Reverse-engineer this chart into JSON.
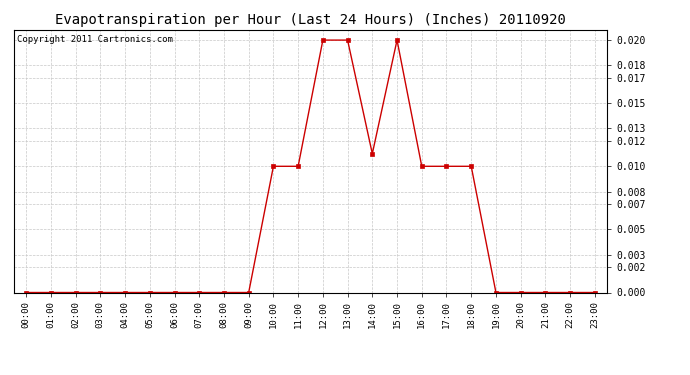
{
  "title": "Evapotranspiration per Hour (Last 24 Hours) (Inches) 20110920",
  "copyright": "Copyright 2011 Cartronics.com",
  "hours": [
    "00:00",
    "01:00",
    "02:00",
    "03:00",
    "04:00",
    "05:00",
    "06:00",
    "07:00",
    "08:00",
    "09:00",
    "10:00",
    "11:00",
    "12:00",
    "13:00",
    "14:00",
    "15:00",
    "16:00",
    "17:00",
    "18:00",
    "19:00",
    "20:00",
    "21:00",
    "22:00",
    "23:00"
  ],
  "values": [
    0.0,
    0.0,
    0.0,
    0.0,
    0.0,
    0.0,
    0.0,
    0.0,
    0.0,
    0.0,
    0.01,
    0.01,
    0.02,
    0.02,
    0.011,
    0.02,
    0.01,
    0.01,
    0.01,
    0.0,
    0.0,
    0.0,
    0.0,
    0.0
  ],
  "line_color": "#cc0000",
  "marker": "s",
  "marker_size": 2.5,
  "background_color": "#ffffff",
  "plot_bg_color": "#ffffff",
  "grid_color": "#c8c8c8",
  "title_fontsize": 10,
  "copyright_fontsize": 6.5,
  "ylim": [
    0.0,
    0.0208
  ],
  "yticks": [
    0.0,
    0.002,
    0.003,
    0.005,
    0.007,
    0.008,
    0.01,
    0.012,
    0.013,
    0.015,
    0.017,
    0.018,
    0.02
  ]
}
